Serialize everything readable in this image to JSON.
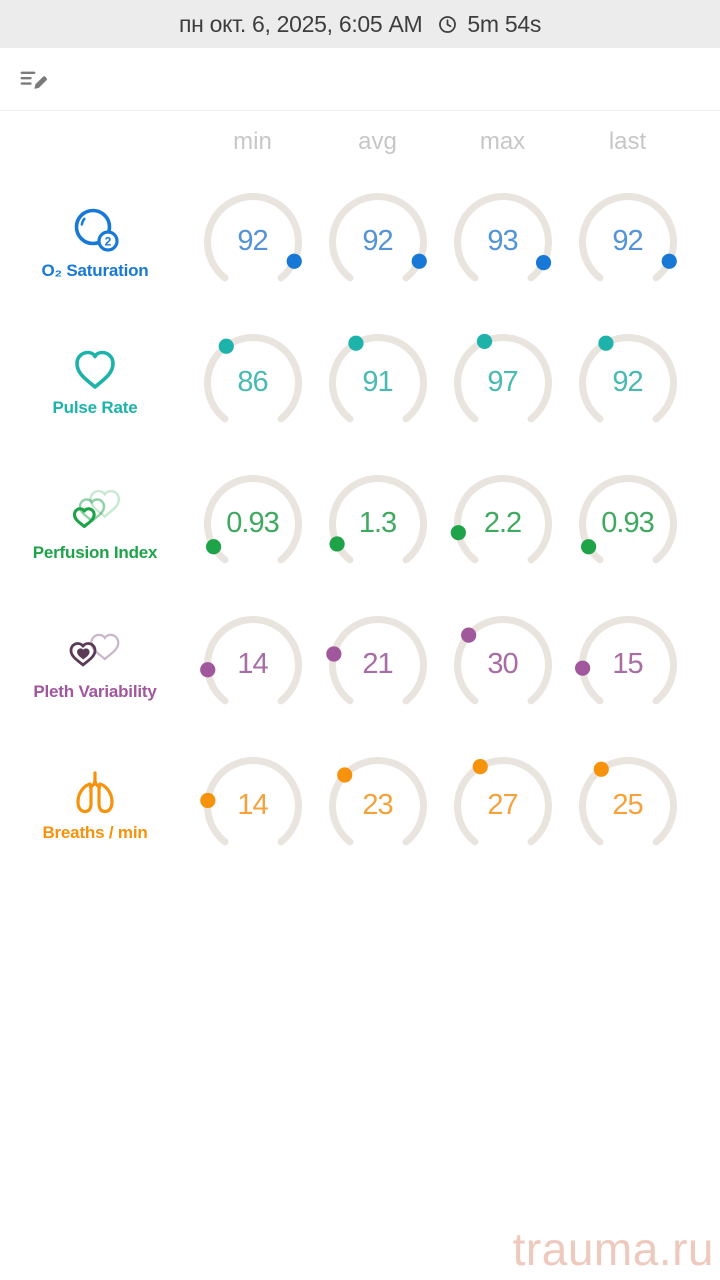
{
  "header": {
    "title": "пн окт. 6, 2025, 6:05 AM",
    "duration": "5m 54s"
  },
  "toolbar": {
    "edit_icon": "edit-note-icon"
  },
  "gauge_style": {
    "track_color": "#e9e4de",
    "header_color": "#c7c7c7"
  },
  "chart_data": {
    "type": "gauge-table",
    "columns": [
      "min",
      "avg",
      "max",
      "last"
    ],
    "rows": [
      {
        "metric": "O₂ Saturation",
        "icon": "o2-saturation-icon",
        "color": "#1878d6",
        "value_color": "#5494d6",
        "values": [
          "92",
          "92",
          "93",
          "92"
        ],
        "dot_angles": [
          115,
          115,
          117,
          115
        ]
      },
      {
        "metric": "Pulse Rate",
        "icon": "heart-icon",
        "color": "#1db3ab",
        "value_color": "#49bab2",
        "values": [
          "86",
          "91",
          "97",
          "92"
        ],
        "dot_angles": [
          324,
          331,
          336,
          331
        ]
      },
      {
        "metric": "Perfusion Index",
        "icon": "perfusion-hearts-icon",
        "color": "#1ea349",
        "value_color": "#3fa95f",
        "values": [
          "0.93",
          "1.3",
          "2.2",
          "0.93"
        ],
        "dot_angles": [
          240,
          244,
          259,
          240
        ]
      },
      {
        "metric": "Pleth Variability",
        "icon": "pleth-hearts-icon",
        "color": "#a0579c",
        "value_color": "#a86da4",
        "values": [
          "14",
          "21",
          "30",
          "15"
        ],
        "dot_angles": [
          264,
          284,
          311,
          266
        ]
      },
      {
        "metric": "Breaths / min",
        "icon": "lungs-icon",
        "color": "#f6920b",
        "value_color": "#f5a23c",
        "values": [
          "14",
          "23",
          "27",
          "25"
        ],
        "dot_angles": [
          277,
          313,
          330,
          324
        ]
      }
    ]
  },
  "watermark": {
    "text": "trauma.ru",
    "color": "#edcabd"
  }
}
